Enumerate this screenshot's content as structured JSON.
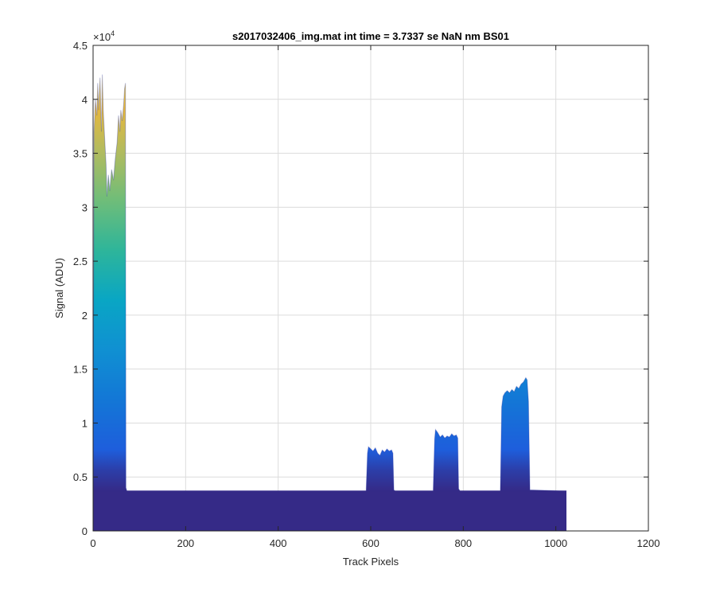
{
  "chart_data": {
    "type": "area",
    "title": "s2017032406_img.mat int time = 3.7337 se  NaN nm BS01",
    "xlabel": "Track Pixels",
    "ylabel": "Signal (ADU)",
    "xlim": [
      0,
      1200
    ],
    "ylim": [
      0,
      45000
    ],
    "x_ticks": [
      0,
      200,
      400,
      600,
      800,
      1000,
      1200
    ],
    "y_ticks": [
      0,
      0.5,
      1,
      1.5,
      2,
      2.5,
      3,
      3.5,
      4,
      4.5
    ],
    "y_exponent_label": "×10",
    "y_exponent_power": "4",
    "grid": true,
    "baseline": 3700,
    "series": [
      {
        "x": [
          0,
          2,
          5,
          8,
          10,
          12,
          15,
          18,
          20,
          22,
          25,
          28,
          30,
          33,
          36,
          40,
          44,
          48,
          52,
          55,
          58,
          60,
          63,
          66,
          68,
          70,
          71,
          73,
          80,
          590,
          593,
          595,
          600,
          605,
          610,
          615,
          620,
          625,
          630,
          635,
          640,
          645,
          648,
          650,
          653,
          735,
          738,
          740,
          745,
          750,
          755,
          760,
          765,
          770,
          775,
          780,
          785,
          788,
          790,
          793,
          880,
          883,
          886,
          890,
          895,
          900,
          905,
          910,
          915,
          920,
          925,
          930,
          935,
          938,
          941,
          944,
          1023
        ],
        "y": [
          3700,
          37000,
          40000,
          38500,
          41500,
          39000,
          42000,
          37000,
          42300,
          39000,
          36500,
          34000,
          31000,
          33000,
          31500,
          33500,
          32500,
          34500,
          36000,
          38500,
          37000,
          39000,
          38000,
          39500,
          41000,
          41500,
          4000,
          3700,
          3700,
          3700,
          7200,
          7800,
          7600,
          7400,
          7700,
          7200,
          7000,
          7500,
          7300,
          7600,
          7400,
          7500,
          7200,
          3800,
          3700,
          3700,
          8500,
          9400,
          9100,
          8700,
          8900,
          8600,
          8800,
          8700,
          9000,
          8800,
          8900,
          8600,
          3900,
          3700,
          3700,
          11500,
          12500,
          12800,
          13000,
          12800,
          13100,
          12900,
          13400,
          13200,
          13600,
          13800,
          14200,
          14000,
          12000,
          3800,
          3700
        ]
      }
    ]
  }
}
